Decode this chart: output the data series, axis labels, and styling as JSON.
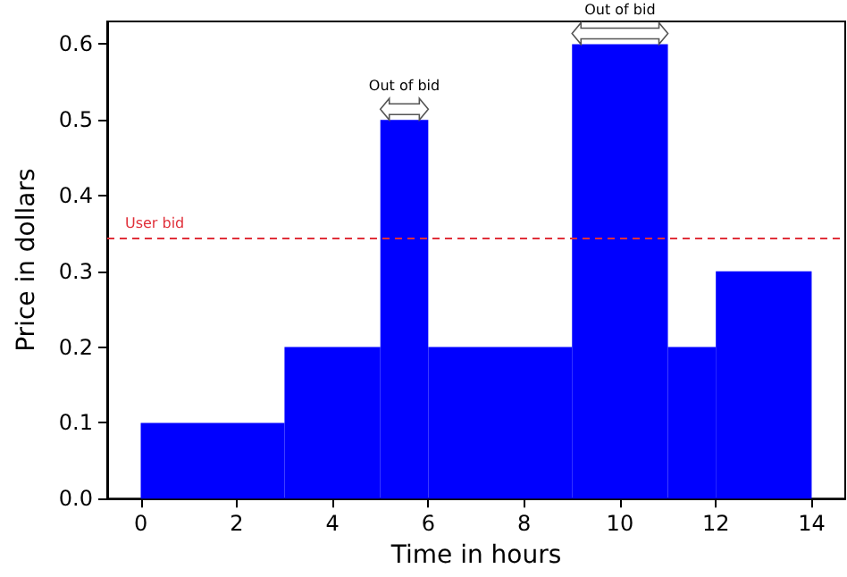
{
  "chart_data": {
    "type": "histogram",
    "xlabel": "Time in hours",
    "ylabel": "Price in dollars",
    "bins": [
      0,
      3,
      5,
      6,
      9,
      11,
      12,
      14
    ],
    "values": [
      0.1,
      0.2,
      0.5,
      0.2,
      0.6,
      0.2,
      0.3
    ],
    "color": "#0000ff",
    "xlim": [
      -0.7,
      14.7
    ],
    "xticks": [
      0,
      2,
      4,
      6,
      8,
      10,
      12,
      14
    ],
    "ylim": [
      0,
      0.63
    ],
    "yticks": [
      {
        "value": 0,
        "label": "0.0"
      },
      0.1,
      0.2,
      0.3,
      0.4,
      0.5,
      0.6
    ],
    "ref_lines": [
      {
        "axis": "y",
        "value": 0.345,
        "label": "User bid",
        "color": "#e0303a",
        "line_style": "dashed"
      }
    ],
    "annotations": [
      {
        "text": "Out of bid",
        "x": 5.5,
        "y": 0.5
      },
      {
        "text": "Out of bid",
        "x": 10,
        "y": 0.6
      }
    ],
    "grid": false
  }
}
